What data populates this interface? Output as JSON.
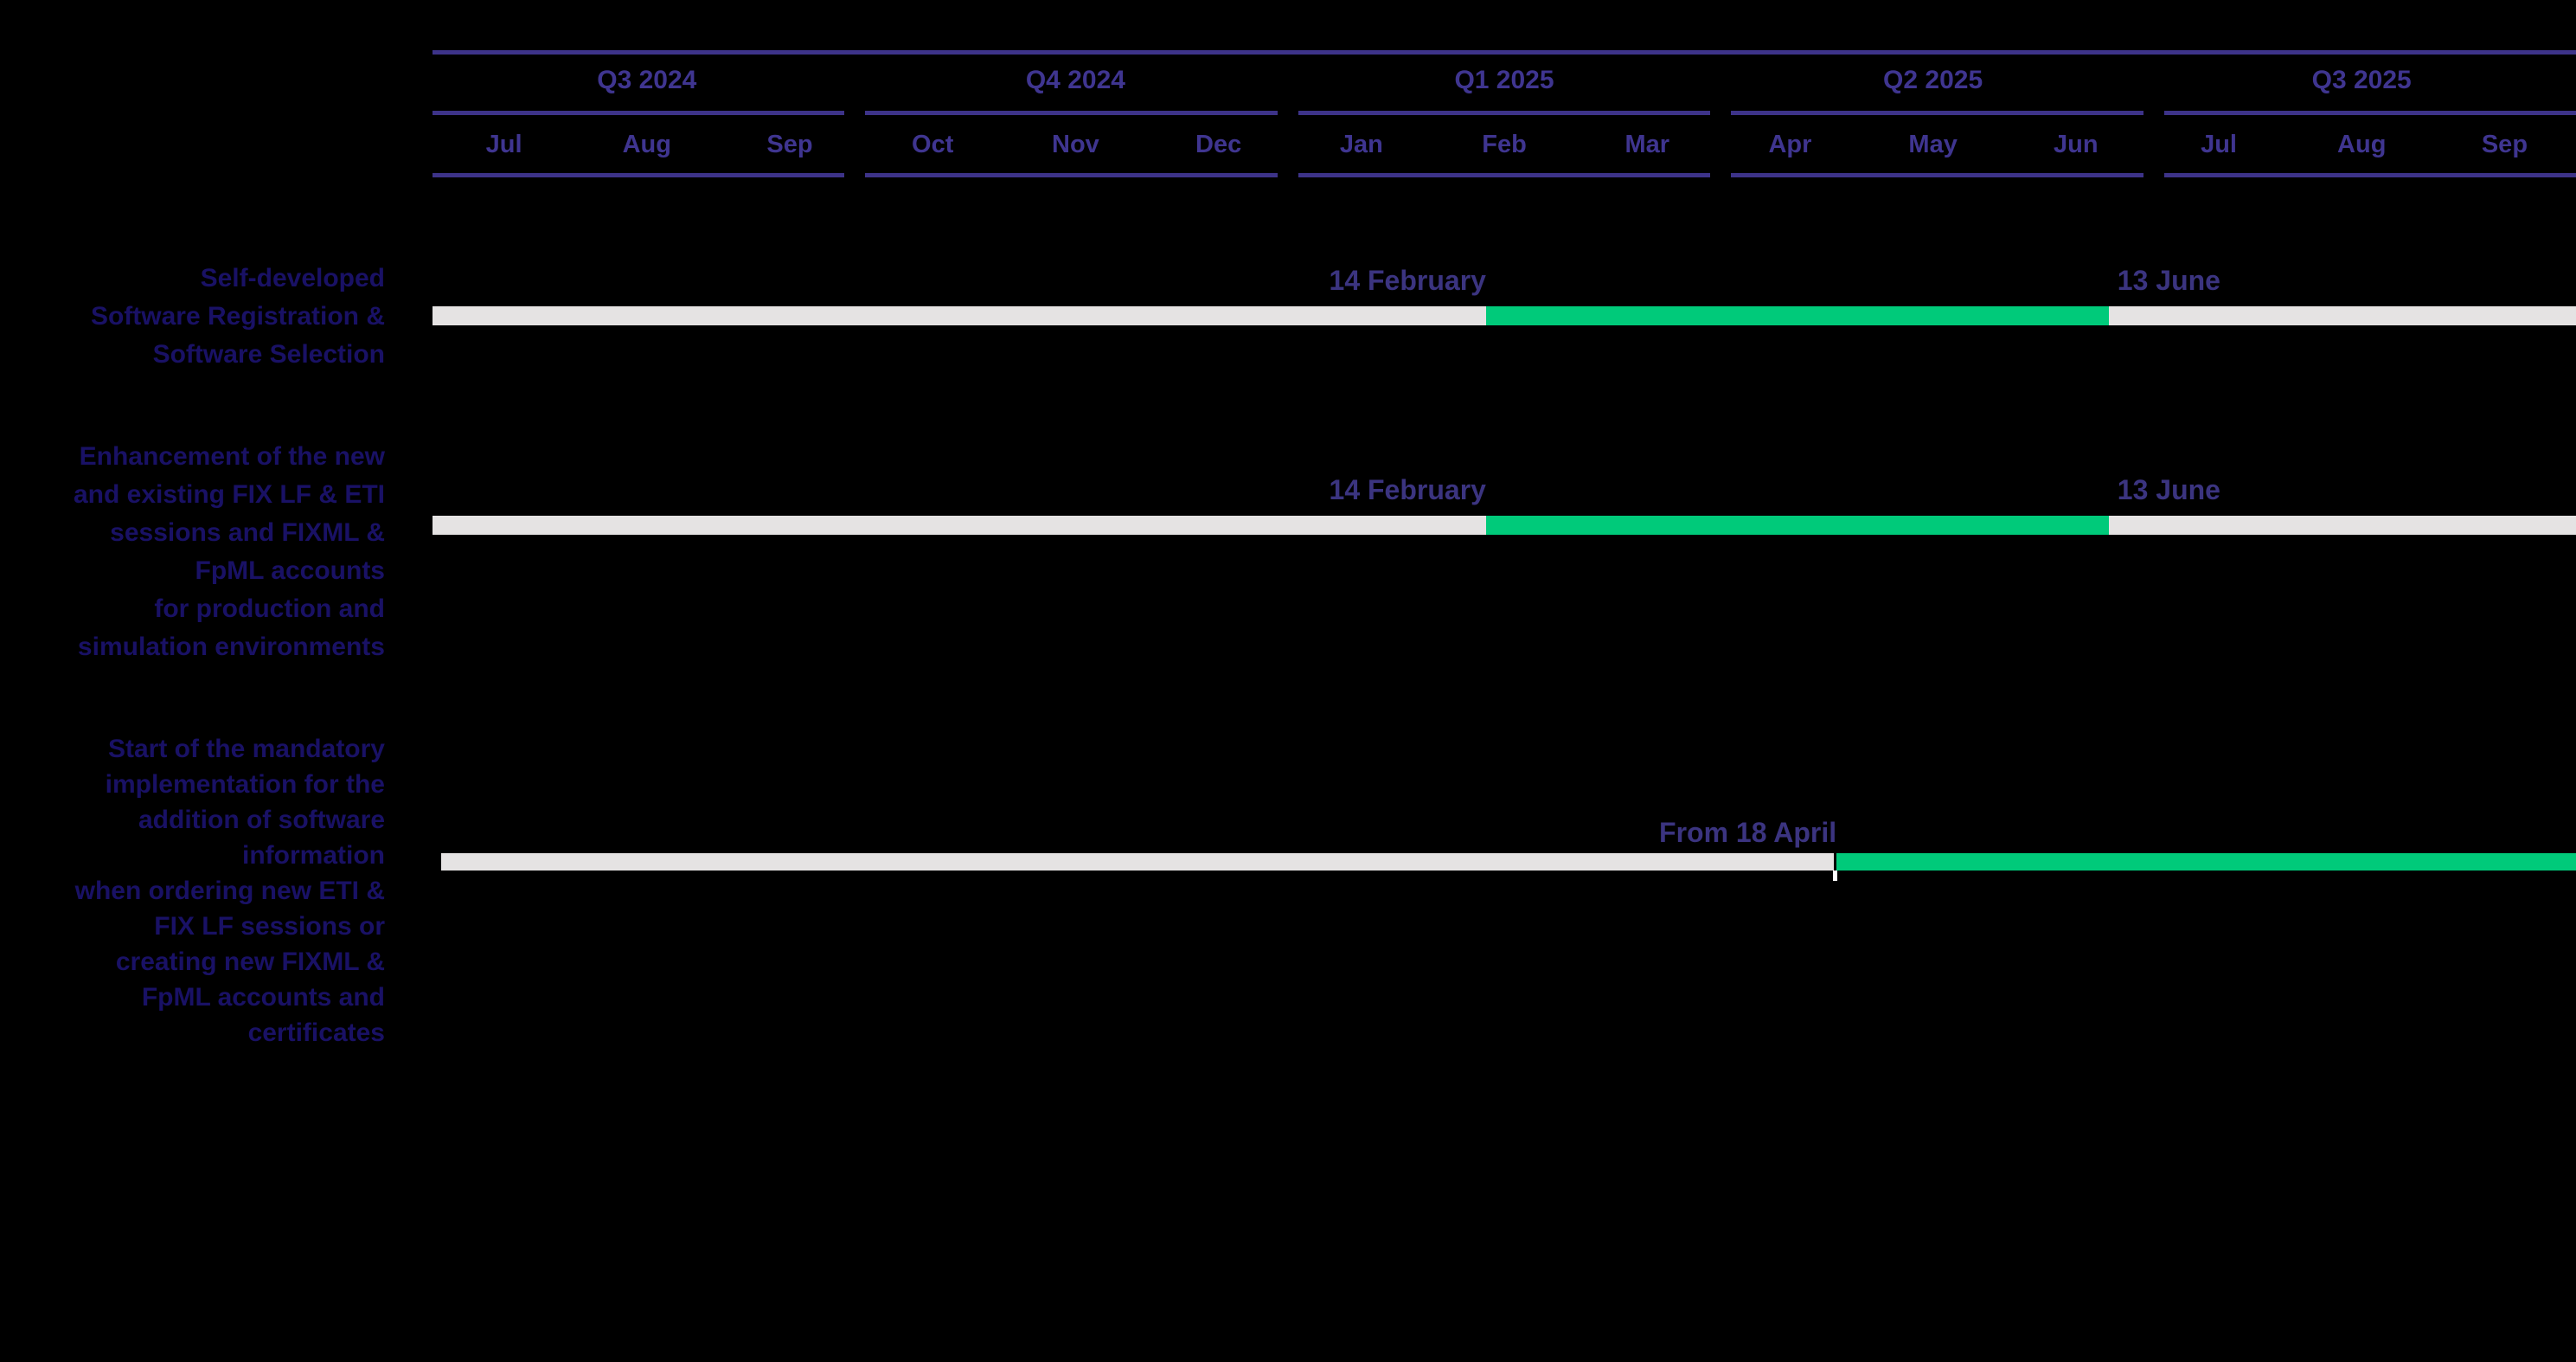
{
  "chart_data": {
    "type": "bar",
    "subtype": "gantt_timeline",
    "title": "",
    "x_axis": {
      "quarters": [
        {
          "label": "Q3 2024",
          "months": [
            "Jul",
            "Aug",
            "Sep"
          ]
        },
        {
          "label": "Q4 2024",
          "months": [
            "Oct",
            "Nov",
            "Dec"
          ]
        },
        {
          "label": "Q1 2025",
          "months": [
            "Jan",
            "Feb",
            "Mar"
          ]
        },
        {
          "label": "Q2 2025",
          "months": [
            "Apr",
            "May",
            "Jun"
          ]
        },
        {
          "label": "Q3 2025",
          "months": [
            "Jul",
            "Aug",
            "Sep"
          ]
        }
      ]
    },
    "tasks": [
      {
        "label": "Self-developed\nSoftware Registration &\nSoftware Selection",
        "start_label": "14 February",
        "end_label": "13 June",
        "track_pct": [
          0,
          100
        ],
        "highlight_pct": [
          49.15,
          78.2
        ]
      },
      {
        "label": "Enhancement of the new\nand existing FIX LF & ETI\nsessions and FIXML &\nFpML accounts\nfor production and\nsimulation environments",
        "start_label": "14 February",
        "end_label": "13 June",
        "track_pct": [
          0,
          100
        ],
        "highlight_pct": [
          49.15,
          78.2
        ]
      },
      {
        "label": "Start of the mandatory\nimplementation for the\naddition of software\ninformation\nwhen ordering new ETI &\nFIX LF sessions or\ncreating new FIXML &\nFpML accounts and\ncertificates",
        "start_label": "From 18 April",
        "end_label": "",
        "track_pct": [
          0.4,
          100
        ],
        "highlight_pct": [
          65.5,
          100
        ],
        "tick_at_pct": 65.5
      }
    ],
    "legend": null,
    "grid": "quarter-separated header rules",
    "colors": {
      "background": "#000000",
      "track": "#e5e3e3",
      "highlight": "#00ca7a",
      "header_text": "#3f3590",
      "grid_lines": "#3d3389",
      "task_label": "#191165",
      "date_label": "#3b3480",
      "tick_marker": "#ffffff"
    }
  }
}
